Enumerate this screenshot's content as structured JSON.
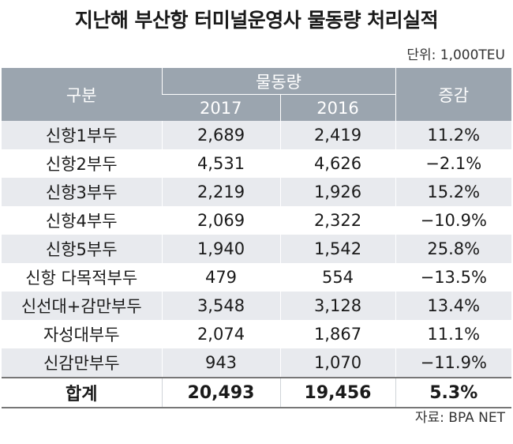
{
  "title": "지난해 부산항 터미널운영사 물동량 처리실적",
  "unit": "단위: 1,000TEU",
  "source": "자료: BPA NET",
  "colors": {
    "header_bg": "#9ba5af",
    "row_shade": "#e8eaee"
  },
  "chart_data": {
    "type": "table",
    "columns": {
      "category": "구분",
      "volume_group": "물동량",
      "y2017": "2017",
      "y2016": "2016",
      "change": "증감"
    },
    "rows": [
      {
        "name": "신항1부두",
        "v2017": "2,689",
        "v2016": "2,419",
        "change": "11.2%"
      },
      {
        "name": "신항2부두",
        "v2017": "4,531",
        "v2016": "4,626",
        "change": "−2.1%"
      },
      {
        "name": "신항3부두",
        "v2017": "2,219",
        "v2016": "1,926",
        "change": "15.2%"
      },
      {
        "name": "신항4부두",
        "v2017": "2,069",
        "v2016": "2,322",
        "change": "−10.9%"
      },
      {
        "name": "신항5부두",
        "v2017": "1,940",
        "v2016": "1,542",
        "change": "25.8%"
      },
      {
        "name": "신항 다목적부두",
        "v2017": "479",
        "v2016": "554",
        "change": "−13.5%"
      },
      {
        "name": "신선대+감만부두",
        "v2017": "3,548",
        "v2016": "3,128",
        "change": "13.4%"
      },
      {
        "name": "자성대부두",
        "v2017": "2,074",
        "v2016": "1,867",
        "change": "11.1%"
      },
      {
        "name": "신감만부두",
        "v2017": "943",
        "v2016": "1,070",
        "change": "−11.9%"
      }
    ],
    "total": {
      "name": "합계",
      "v2017": "20,493",
      "v2016": "19,456",
      "change": "5.3%"
    }
  }
}
